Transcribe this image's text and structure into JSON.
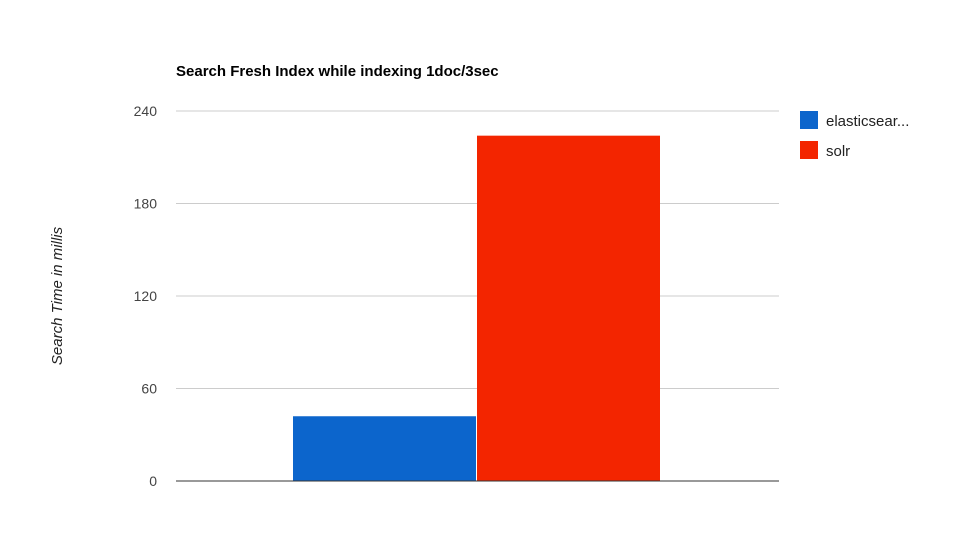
{
  "chart_data": {
    "type": "bar",
    "title": "Search Fresh Index while indexing 1doc/3sec",
    "xlabel": "",
    "ylabel": "Search Time in millis",
    "categories": [
      ""
    ],
    "series": [
      {
        "name": "elasticsear...",
        "values": [
          42
        ],
        "color": "#0c65cc"
      },
      {
        "name": "solr",
        "values": [
          224
        ],
        "color": "#f32500"
      }
    ],
    "ylim": [
      0,
      240
    ],
    "yticks": [
      "0",
      "60",
      "120",
      "180",
      "240"
    ],
    "grid": true,
    "legend": "right"
  }
}
